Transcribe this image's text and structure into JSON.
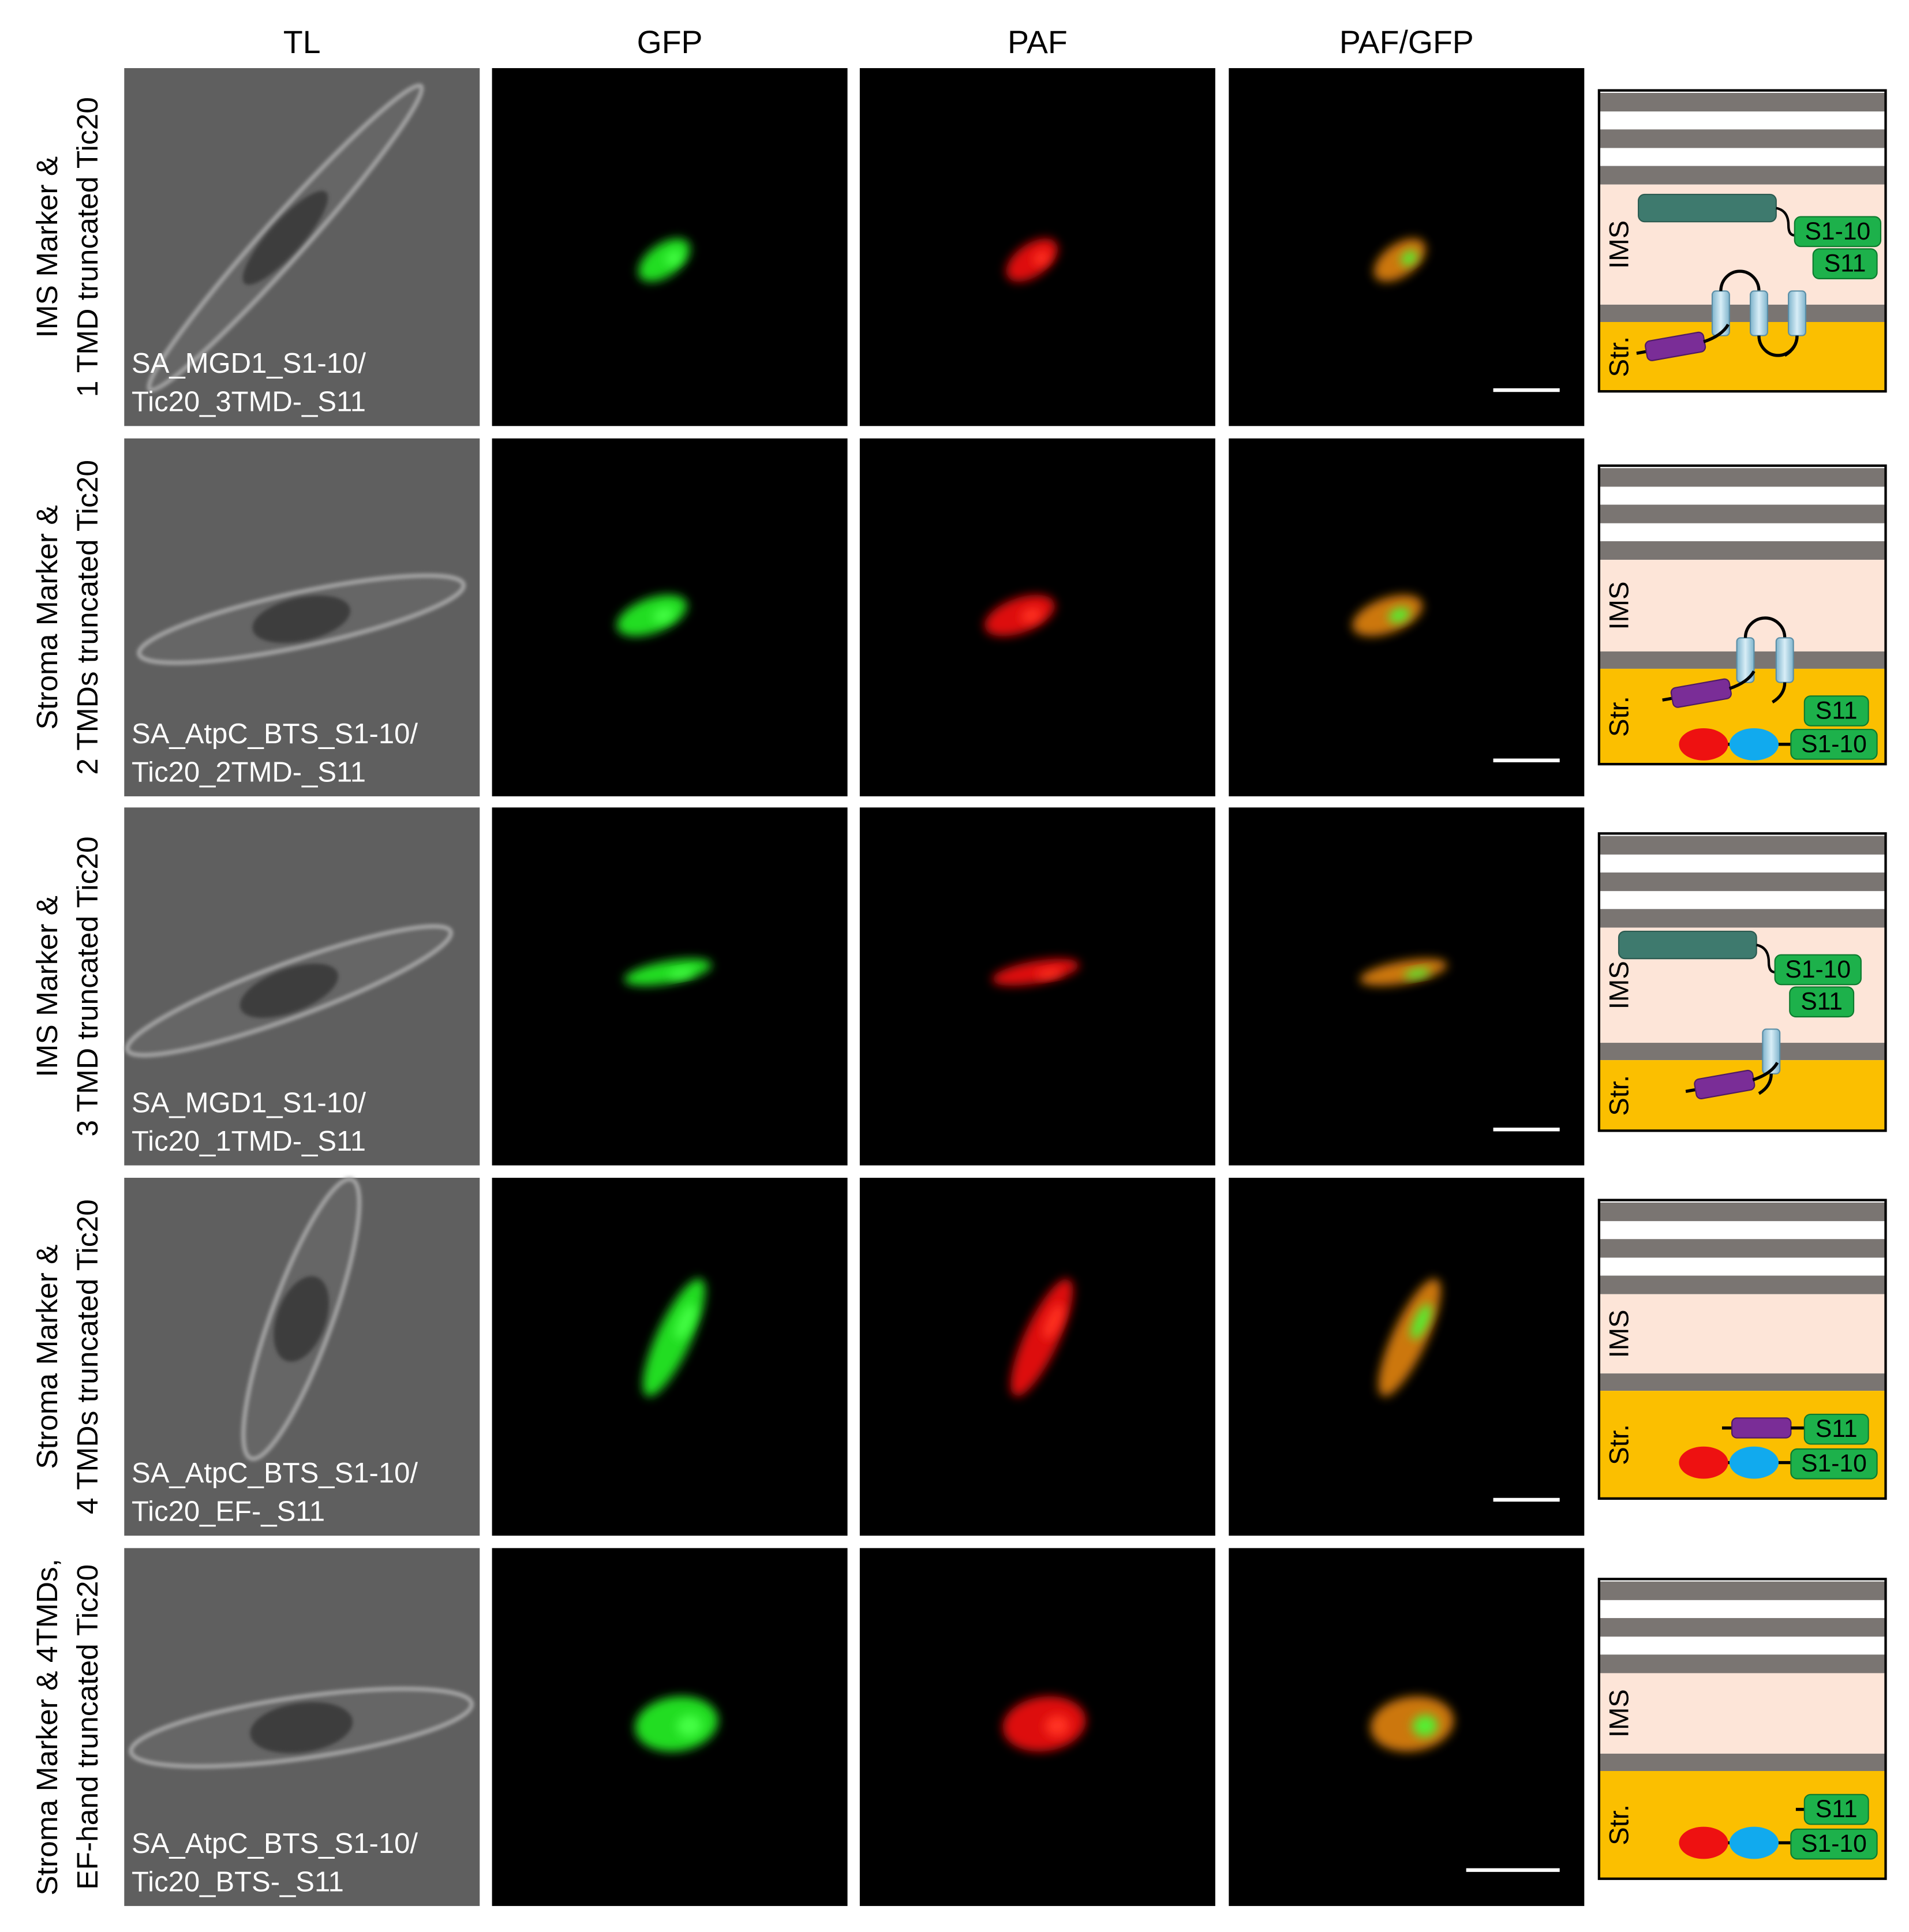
{
  "columns": [
    "TL",
    "GFP",
    "PAF",
    "PAF/GFP"
  ],
  "rows": [
    {
      "label": [
        "IMS Marker &",
        "1 TMD truncated Tic20"
      ],
      "caption": [
        "SA_MGD1_S1-10/",
        "Tic20_3TMD-_S11"
      ],
      "diagram": {
        "ims": "IMS",
        "stroma": "Str.",
        "tags": [
          "S1-10",
          "S11"
        ]
      }
    },
    {
      "label": [
        "Stroma Marker &",
        "2 TMDs truncated Tic20"
      ],
      "caption": [
        "SA_AtpC_BTS_S1-10/",
        "Tic20_2TMD-_S11"
      ],
      "diagram": {
        "ims": "IMS",
        "stroma": "Str.",
        "tags": [
          "S11",
          "S1-10"
        ]
      }
    },
    {
      "label": [
        "IMS Marker &",
        "3 TMD truncated Tic20"
      ],
      "caption": [
        "SA_MGD1_S1-10/",
        "Tic20_1TMD-_S11"
      ],
      "diagram": {
        "ims": "IMS",
        "stroma": "Str.",
        "tags": [
          "S1-10",
          "S11"
        ]
      }
    },
    {
      "label": [
        "Stroma Marker &",
        "4 TMDs truncated Tic20"
      ],
      "caption": [
        "SA_AtpC_BTS_S1-10/",
        "Tic20_EF-_S11"
      ],
      "diagram": {
        "ims": "IMS",
        "stroma": "Str.",
        "tags": [
          "S11",
          "S1-10"
        ]
      }
    },
    {
      "label": [
        "Stroma Marker & 4TMDs,",
        "EF-hand truncated Tic20"
      ],
      "caption": [
        "SA_AtpC_BTS_S1-10/",
        "Tic20_BTS-_S11"
      ],
      "diagram": {
        "ims": "IMS",
        "stroma": "Str.",
        "tags": [
          "S11",
          "S1-10"
        ]
      }
    }
  ]
}
